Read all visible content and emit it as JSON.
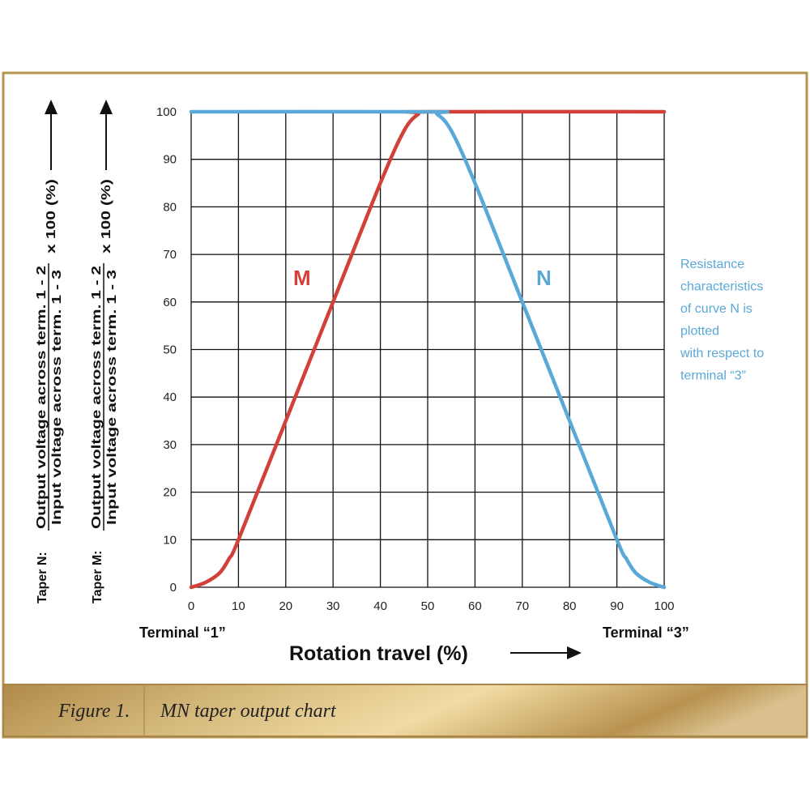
{
  "chart_data": {
    "type": "line",
    "title": "",
    "xlabel": "Rotation travel (%)",
    "xlim": [
      0,
      100
    ],
    "ylim": [
      0,
      100
    ],
    "grid": true,
    "x_ticks": [
      "0",
      "10",
      "20",
      "30",
      "40",
      "50",
      "60",
      "70",
      "80",
      "90",
      "100"
    ],
    "y_ticks": [
      "0",
      "10",
      "20",
      "30",
      "40",
      "50",
      "60",
      "70",
      "80",
      "90",
      "100"
    ],
    "terminal_left": "Terminal “1”",
    "terminal_right": "Terminal “3”",
    "ylabels": [
      {
        "prefix": "Taper N:",
        "numerator": "Output voltage across term. 1 - 2",
        "denominator": "Input voltage across term. 1 - 3",
        "factor": "x 100 (%)"
      },
      {
        "prefix": "Taper M:",
        "numerator": "Output voltage across term. 1 - 2",
        "denominator": "Input voltage across term. 1 - 3",
        "factor": "x 100 (%)"
      }
    ],
    "series": [
      {
        "name": "M",
        "color": "#d2403a",
        "x": [
          0,
          3,
          6,
          8,
          10,
          20,
          30,
          40,
          45,
          48,
          50,
          100
        ],
        "y": [
          0,
          1,
          3,
          6,
          10,
          35,
          60,
          85,
          96,
          99.5,
          100,
          100
        ]
      },
      {
        "name": "N",
        "color": "#5aa8d8",
        "x": [
          0,
          50,
          52,
          55,
          60,
          70,
          80,
          90,
          92,
          94,
          97,
          100
        ],
        "y": [
          100,
          100,
          99.5,
          96,
          85,
          60,
          35,
          10,
          6,
          3,
          1,
          0
        ]
      }
    ],
    "annotation": {
      "color": "#5aa8d8",
      "lines": [
        "Resistance",
        "characteristics",
        "of curve N is",
        "plotted",
        "with respect to",
        "terminal “3”"
      ]
    }
  },
  "caption": {
    "figure": "Figure 1.",
    "text": "MN taper output chart"
  },
  "colors": {
    "frame": "#b8954f"
  }
}
